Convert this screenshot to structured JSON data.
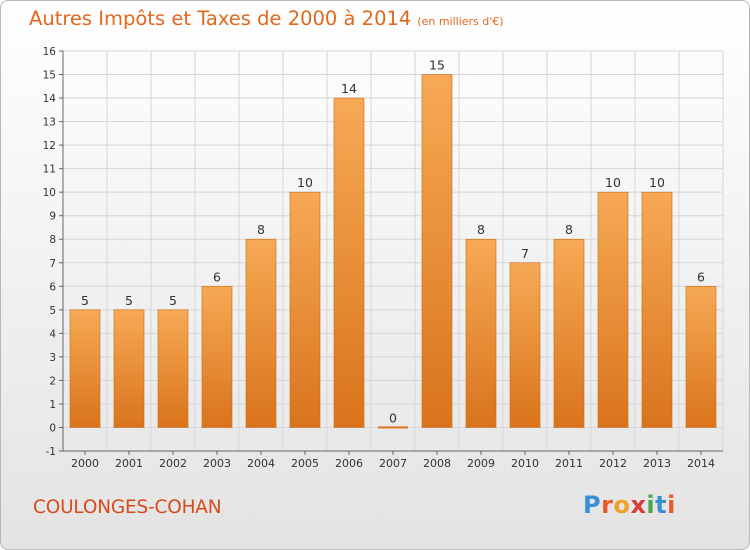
{
  "title": {
    "main": "Autres Impôts et Taxes de 2000 à 2014",
    "unit": "(en milliers d'€)"
  },
  "commune": "COULONGES-COHAN",
  "brand": {
    "letters": [
      "P",
      "r",
      "o",
      "x",
      "i",
      "t",
      "i"
    ],
    "colors": [
      "#3b8fd6",
      "#e85a2a",
      "#f2a02a",
      "#d93a3a",
      "#4aa84a",
      "#3b8fd6",
      "#e85a2a"
    ]
  },
  "colors": {
    "bar_top": "#f7a955",
    "bar_bottom": "#d9741c",
    "bar_stroke": "#c96a18",
    "title": "#e0681f",
    "grid": "#d6d6d6"
  },
  "chart_data": {
    "type": "bar",
    "categories": [
      "2000",
      "2001",
      "2002",
      "2003",
      "2004",
      "2005",
      "2006",
      "2007",
      "2008",
      "2009",
      "2010",
      "2011",
      "2012",
      "2013",
      "2014"
    ],
    "values": [
      5,
      5,
      5,
      6,
      8,
      10,
      14,
      0,
      15,
      8,
      7,
      8,
      10,
      10,
      6
    ],
    "title": "Autres Impôts et Taxes de 2000 à 2014",
    "ylim": [
      -1,
      16
    ],
    "yticks": [
      -1,
      0,
      1,
      2,
      3,
      4,
      5,
      6,
      7,
      8,
      9,
      10,
      11,
      12,
      13,
      14,
      15,
      16
    ],
    "grid": true,
    "data_labels": true
  }
}
